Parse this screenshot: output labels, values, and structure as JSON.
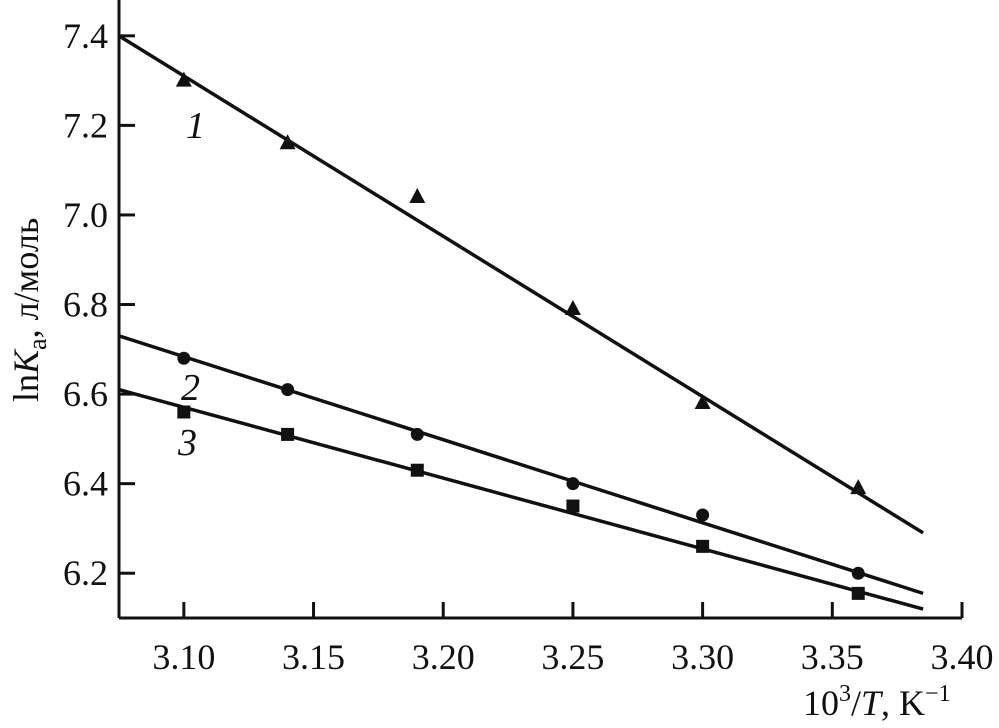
{
  "chart_data": {
    "type": "scatter",
    "x_ticks": [
      "3.10",
      "3.15",
      "3.20",
      "3.25",
      "3.30",
      "3.35",
      "3.40"
    ],
    "y_ticks": [
      "6.2",
      "6.4",
      "6.6",
      "6.8",
      "7.0",
      "7.2",
      "7.4"
    ],
    "xlim": [
      3.075,
      3.4
    ],
    "ylim": [
      6.1,
      7.48
    ],
    "grid": false,
    "series": [
      {
        "name": "1",
        "marker": "triangle",
        "points": [
          [
            3.1,
            7.3
          ],
          [
            3.14,
            7.16
          ],
          [
            3.19,
            7.04
          ],
          [
            3.25,
            6.79
          ],
          [
            3.3,
            6.58
          ],
          [
            3.36,
            6.39
          ]
        ],
        "fit": [
          [
            3.075,
            7.4
          ],
          [
            3.385,
            6.29
          ]
        ]
      },
      {
        "name": "2",
        "marker": "circle",
        "points": [
          [
            3.1,
            6.68
          ],
          [
            3.14,
            6.61
          ],
          [
            3.19,
            6.51
          ],
          [
            3.25,
            6.4
          ],
          [
            3.3,
            6.33
          ],
          [
            3.36,
            6.2
          ]
        ],
        "fit": [
          [
            3.075,
            6.73
          ],
          [
            3.385,
            6.155
          ]
        ]
      },
      {
        "name": "3",
        "marker": "square",
        "points": [
          [
            3.1,
            6.56
          ],
          [
            3.14,
            6.51
          ],
          [
            3.19,
            6.43
          ],
          [
            3.25,
            6.35
          ],
          [
            3.3,
            6.26
          ],
          [
            3.36,
            6.155
          ]
        ],
        "fit": [
          [
            3.075,
            6.61
          ],
          [
            3.385,
            6.12
          ]
        ]
      }
    ]
  },
  "labels": {
    "ylabel_main": "ln",
    "ylabel_symbol": "K",
    "ylabel_sub": "a",
    "ylabel_units": ", л/моль",
    "xlabel_num": "10",
    "xlabel_sup": "3",
    "xlabel_slash": "/",
    "xlabel_var": "T",
    "xlabel_unit": ", K",
    "xlabel_unit_sup": "−1",
    "series_1": "1",
    "series_2": "2",
    "series_3": "3"
  }
}
